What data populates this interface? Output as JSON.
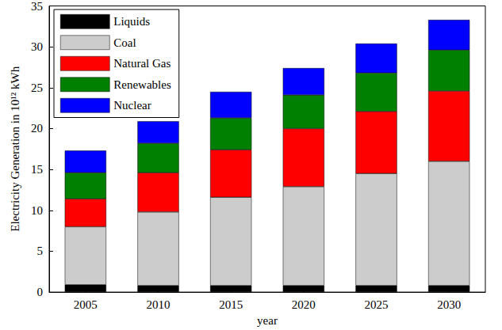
{
  "chart_data": {
    "type": "bar",
    "stacked": true,
    "x_label": "year",
    "y_label": "Electricity Generation in 10¹² kWh",
    "categories": [
      "2005",
      "2010",
      "2015",
      "2020",
      "2025",
      "2030"
    ],
    "series": [
      {
        "name": "Liquids",
        "color": "#000000",
        "values": [
          0.9,
          0.8,
          0.8,
          0.8,
          0.8,
          0.8
        ]
      },
      {
        "name": "Coal",
        "color": "#cccccc",
        "values": [
          7.1,
          9.0,
          10.8,
          12.1,
          13.7,
          15.2
        ]
      },
      {
        "name": "Natural Gas",
        "color": "#ff0000",
        "values": [
          3.4,
          4.8,
          5.8,
          7.1,
          7.6,
          8.6
        ]
      },
      {
        "name": "Renewables",
        "color": "#008000",
        "values": [
          3.2,
          3.6,
          3.9,
          4.1,
          4.7,
          5.0
        ]
      },
      {
        "name": "Nuclear",
        "color": "#0000ff",
        "values": [
          2.7,
          2.7,
          3.2,
          3.3,
          3.6,
          3.7
        ]
      }
    ],
    "ylim": [
      0,
      35
    ],
    "yticks": [
      0,
      5,
      10,
      15,
      20,
      25,
      30,
      35
    ],
    "legend": "upper left",
    "grid": false
  }
}
